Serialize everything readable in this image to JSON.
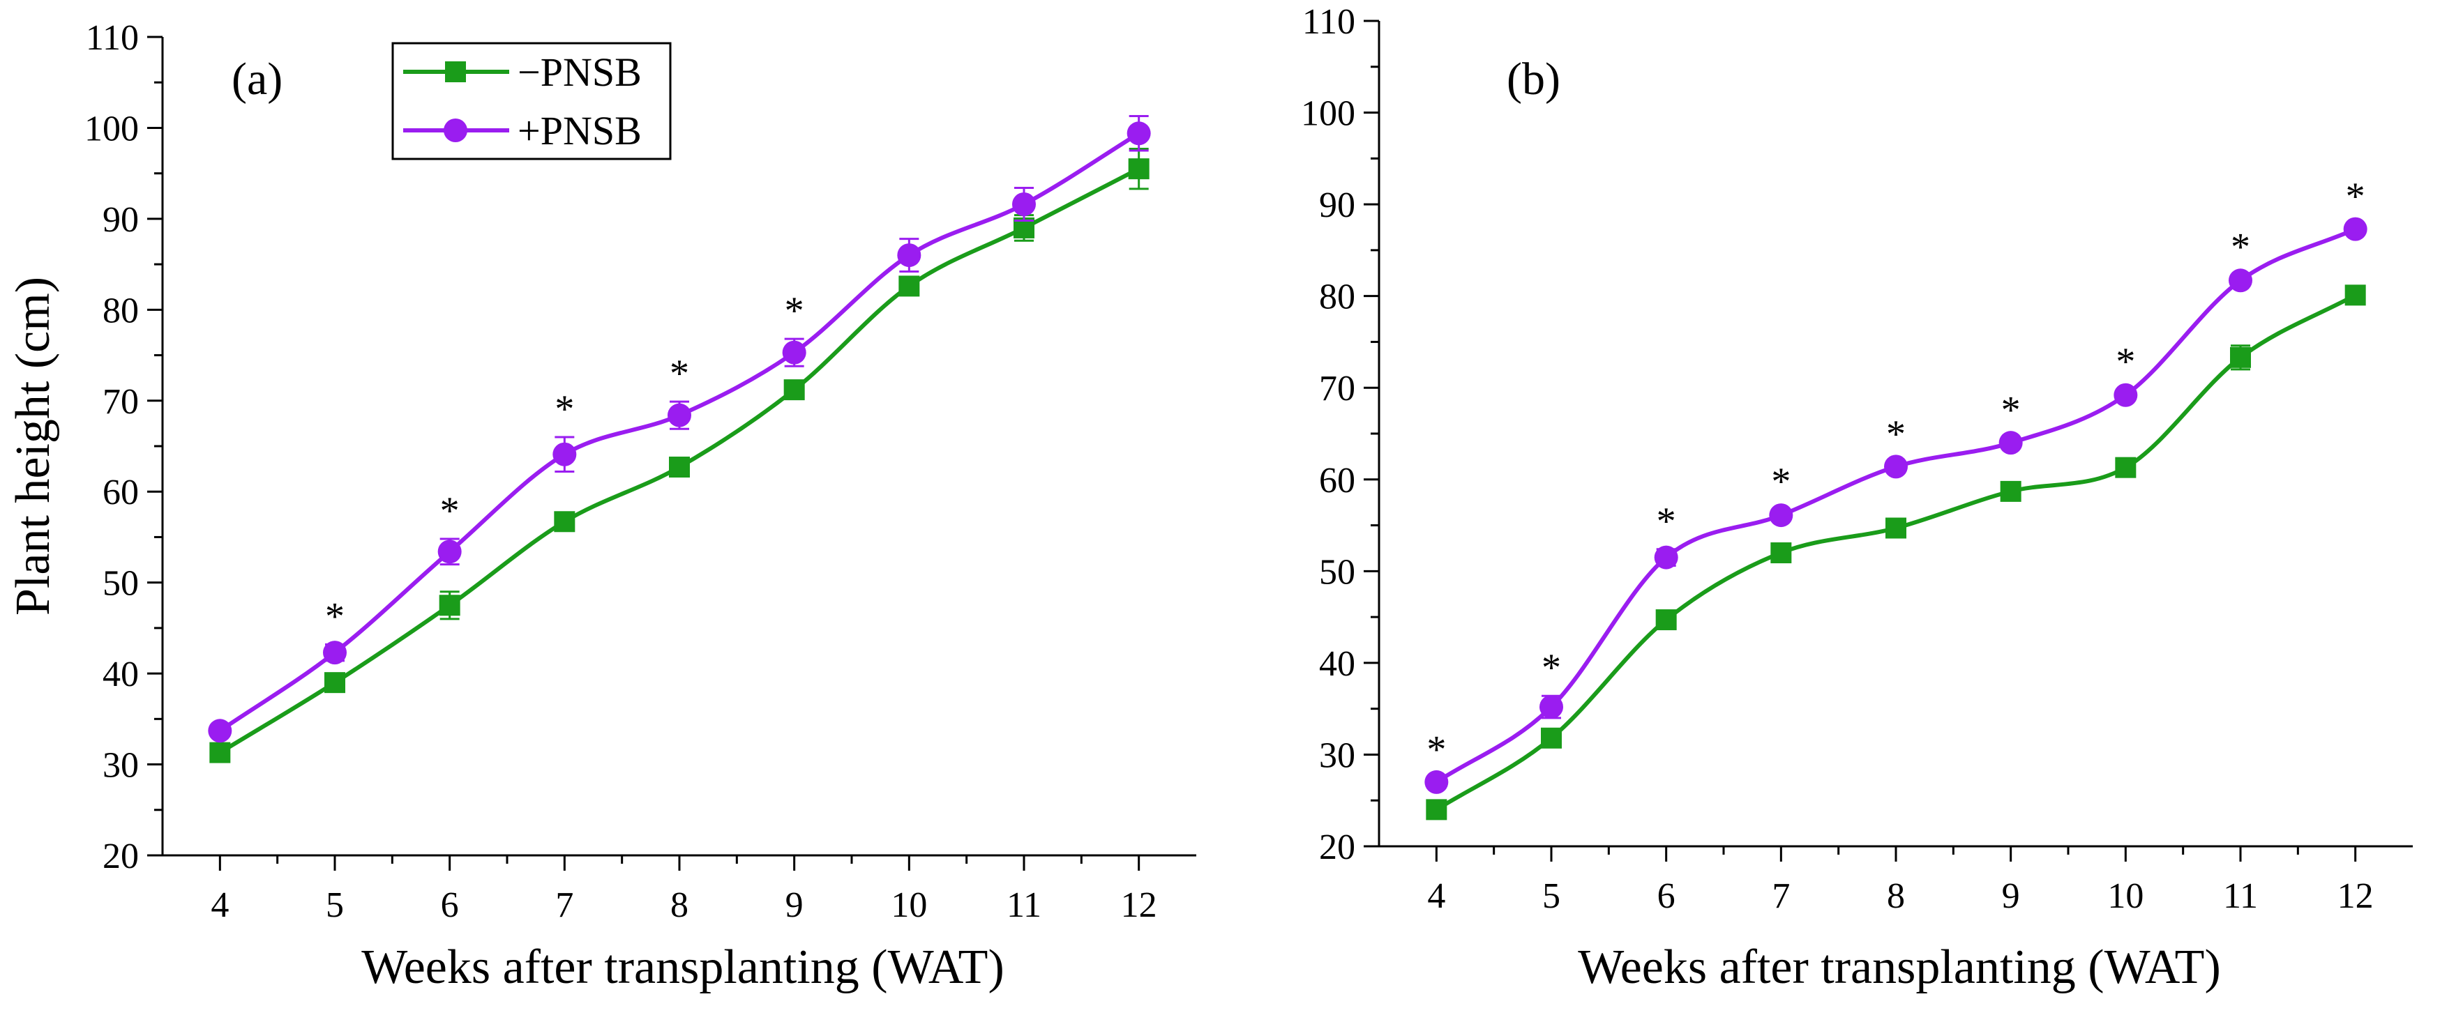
{
  "chart_data": [
    {
      "type": "line",
      "panel_label": "(a)",
      "title": "",
      "xlabel": "Weeks after transplanting (WAT)",
      "ylabel": "Plant height (cm)",
      "x": [
        4,
        5,
        6,
        7,
        8,
        9,
        10,
        11,
        12
      ],
      "xlim": [
        3.5,
        12.5
      ],
      "ylim": [
        20,
        110
      ],
      "xticks": [
        "4",
        "5",
        "6",
        "7",
        "8",
        "9",
        "10",
        "11",
        "12"
      ],
      "yticks": [
        "20",
        "30",
        "40",
        "50",
        "60",
        "70",
        "80",
        "90",
        "100",
        "110"
      ],
      "grid": false,
      "legend_position": "top-left",
      "series": [
        {
          "name": "−PNSB",
          "color": "#1a9c1a",
          "marker": "square",
          "values": [
            31.3,
            39.0,
            47.5,
            56.7,
            62.7,
            71.2,
            82.6,
            89.0,
            95.5
          ],
          "errors": [
            0.6,
            0.7,
            1.5,
            0.8,
            0.8,
            0.8,
            0.9,
            1.4,
            2.2
          ]
        },
        {
          "name": "+PNSB",
          "color": "#9a1df0",
          "marker": "circle",
          "values": [
            33.7,
            42.3,
            53.4,
            64.1,
            68.4,
            75.3,
            86.0,
            91.6,
            99.4
          ],
          "errors": [
            0.6,
            0.9,
            1.4,
            1.9,
            1.5,
            1.5,
            1.8,
            1.8,
            1.9
          ]
        }
      ],
      "annotations": [
        {
          "x": 5,
          "text": "*"
        },
        {
          "x": 6,
          "text": "*"
        },
        {
          "x": 7,
          "text": "*"
        },
        {
          "x": 8,
          "text": "*"
        },
        {
          "x": 9,
          "text": "*"
        }
      ]
    },
    {
      "type": "line",
      "panel_label": "(b)",
      "title": "",
      "xlabel": "Weeks after transplanting (WAT)",
      "ylabel": "",
      "x": [
        4,
        5,
        6,
        7,
        8,
        9,
        10,
        11,
        12
      ],
      "xlim": [
        3.5,
        12.5
      ],
      "ylim": [
        20,
        110
      ],
      "xticks": [
        "4",
        "5",
        "6",
        "7",
        "8",
        "9",
        "10",
        "11",
        "12"
      ],
      "yticks": [
        "20",
        "30",
        "40",
        "50",
        "60",
        "70",
        "80",
        "90",
        "100",
        "110"
      ],
      "grid": false,
      "series": [
        {
          "name": "−PNSB",
          "color": "#1a9c1a",
          "marker": "square",
          "values": [
            24.0,
            31.8,
            44.7,
            52.0,
            54.7,
            58.7,
            61.3,
            73.3,
            80.1
          ],
          "errors": [
            0.5,
            0.8,
            0.8,
            0.6,
            0.6,
            0.6,
            0.6,
            1.3,
            1.0
          ]
        },
        {
          "name": "+PNSB",
          "color": "#9a1df0",
          "marker": "circle",
          "values": [
            27.0,
            35.2,
            51.5,
            56.1,
            61.4,
            64.0,
            69.2,
            81.7,
            87.3
          ],
          "errors": [
            0.5,
            1.2,
            0.9,
            0.6,
            0.5,
            0.5,
            0.6,
            0.6,
            0.5
          ]
        }
      ],
      "annotations": [
        {
          "x": 4,
          "text": "*"
        },
        {
          "x": 5,
          "text": "*"
        },
        {
          "x": 6,
          "text": "*"
        },
        {
          "x": 7,
          "text": "*"
        },
        {
          "x": 8,
          "text": "*"
        },
        {
          "x": 9,
          "text": "*"
        },
        {
          "x": 10,
          "text": "*"
        },
        {
          "x": 11,
          "text": "*"
        },
        {
          "x": 12,
          "text": "*"
        }
      ]
    }
  ]
}
